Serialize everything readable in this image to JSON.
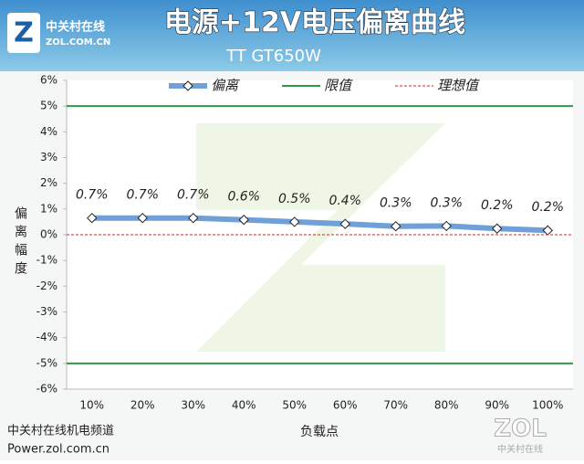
{
  "branding": {
    "logo_name": "中关村在线",
    "logo_site": "ZOL.COM.CN",
    "channel": "中关村在线机电频道",
    "url": "Power.zol.com.cn",
    "watermark": "ZOL",
    "watermark_sub": "中关村在线"
  },
  "chart_data": {
    "type": "line",
    "title": "电源+12V电压偏离曲线",
    "subtitle": "TT GT650W",
    "x_label": "负载点",
    "y_label": "偏离幅度",
    "categories": [
      "10%",
      "20%",
      "30%",
      "40%",
      "50%",
      "60%",
      "70%",
      "80%",
      "90%",
      "100%"
    ],
    "series": [
      {
        "name": "偏离",
        "color": "#6fa0d8",
        "values": [
          0.65,
          0.65,
          0.65,
          0.58,
          0.5,
          0.42,
          0.33,
          0.34,
          0.24,
          0.17
        ],
        "value_labels": [
          "0.7%",
          "0.7%",
          "0.7%",
          "0.6%",
          "0.5%",
          "0.4%",
          "0.3%",
          "0.3%",
          "0.2%",
          "0.2%"
        ]
      },
      {
        "name": "限值",
        "color": "#2e9a4a",
        "hlines": [
          5,
          -5
        ]
      },
      {
        "name": "理想值",
        "color": "#d42020",
        "dashed": true,
        "hlines": [
          0
        ]
      }
    ],
    "ylim": [
      -6,
      6
    ],
    "yticks": [
      {
        "value": 6,
        "label": "6%"
      },
      {
        "value": 5,
        "label": "5%"
      },
      {
        "value": 4,
        "label": "4%"
      },
      {
        "value": 3,
        "label": "3%"
      },
      {
        "value": 2,
        "label": "2%"
      },
      {
        "value": 1,
        "label": "1%"
      },
      {
        "value": 0,
        "label": "0%"
      },
      {
        "value": -1,
        "label": "-1%"
      },
      {
        "value": -2,
        "label": "-2%"
      },
      {
        "value": -3,
        "label": "-3%"
      },
      {
        "value": -4,
        "label": "-4%"
      },
      {
        "value": -5,
        "label": "-5%"
      },
      {
        "value": -6,
        "label": "-6%"
      }
    ],
    "grid": false,
    "legend": "top"
  }
}
